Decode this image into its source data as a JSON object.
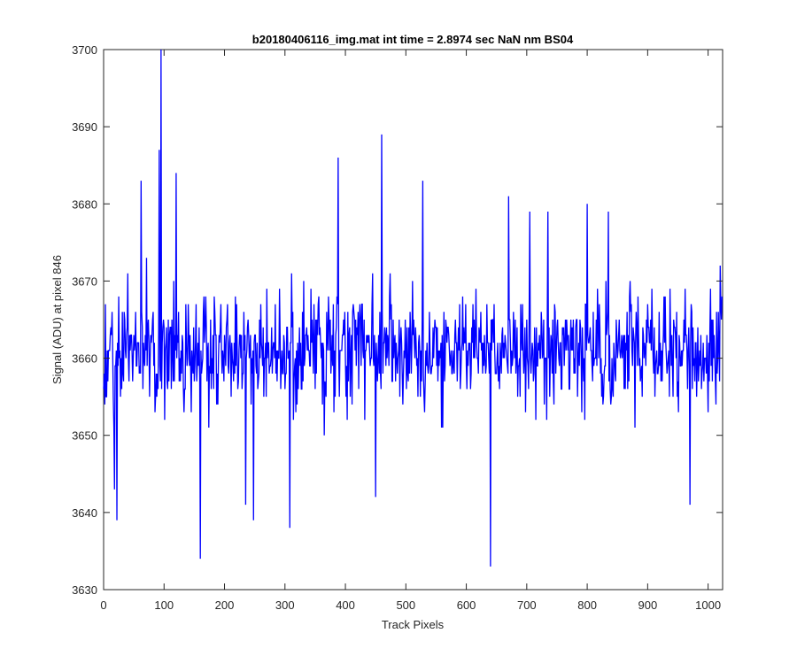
{
  "chart_data": {
    "type": "line",
    "title": "b20180406116_img.mat int time = 2.8974 sec  NaN nm BS04",
    "xlabel": "Track Pixels",
    "ylabel": "Signal (ADU) at pixel 846",
    "xlim": [
      0,
      1024
    ],
    "ylim": [
      3630,
      3700
    ],
    "xticks": [
      0,
      100,
      200,
      300,
      400,
      500,
      600,
      700,
      800,
      900,
      1000
    ],
    "yticks": [
      3630,
      3640,
      3650,
      3660,
      3670,
      3680,
      3690,
      3700
    ],
    "grid": false,
    "legend": "none",
    "line_color": "#0000ff",
    "series": [
      {
        "x_start": 0,
        "x_step": 1,
        "baseline": 3661,
        "noise_amplitude": 6,
        "seed": 846,
        "n_points": 1024,
        "notable_points": [
          {
            "x": 18,
            "y": 3643
          },
          {
            "x": 22,
            "y": 3639
          },
          {
            "x": 62,
            "y": 3683
          },
          {
            "x": 92,
            "y": 3687
          },
          {
            "x": 95,
            "y": 3700
          },
          {
            "x": 120,
            "y": 3684
          },
          {
            "x": 160,
            "y": 3634
          },
          {
            "x": 235,
            "y": 3641
          },
          {
            "x": 248,
            "y": 3639
          },
          {
            "x": 308,
            "y": 3638
          },
          {
            "x": 388,
            "y": 3686
          },
          {
            "x": 450,
            "y": 3642
          },
          {
            "x": 460,
            "y": 3689
          },
          {
            "x": 528,
            "y": 3683
          },
          {
            "x": 640,
            "y": 3633
          },
          {
            "x": 670,
            "y": 3681
          },
          {
            "x": 705,
            "y": 3679
          },
          {
            "x": 735,
            "y": 3679
          },
          {
            "x": 800,
            "y": 3680
          },
          {
            "x": 835,
            "y": 3679
          },
          {
            "x": 970,
            "y": 3641
          },
          {
            "x": 1020,
            "y": 3672
          }
        ]
      }
    ]
  }
}
